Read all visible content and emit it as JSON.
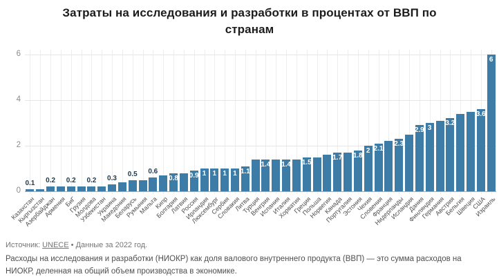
{
  "title": {
    "line1": "Затраты на исследования и разработки в процентах от ВВП по",
    "line2": "странам"
  },
  "chart_data": {
    "type": "bar",
    "title": "Затраты на исследования и разработки в процентах от ВВП по странам",
    "xlabel": "",
    "ylabel": "",
    "ylim": [
      0,
      6.2
    ],
    "yticks": [
      0,
      2,
      4,
      6
    ],
    "grid": true,
    "legend": false,
    "bar_color": "#3d7ca6",
    "label_color_dark": "#1e384d",
    "label_color_light": "#ffffff",
    "categories": [
      "Казахстан",
      "Кыргызстан",
      "Азербайджан",
      "Армения",
      "БиГ",
      "Грузия",
      "Молдова",
      "Узбекистан",
      "Украина",
      "Македония",
      "Беларусь",
      "Румыния",
      "Мальта",
      "Кипр",
      "Болгария",
      "Латвия",
      "Россия",
      "Ирландия",
      "Люксембург",
      "Сербия",
      "Словакия",
      "Литва",
      "Турция",
      "Венгрия",
      "Испания",
      "Италия",
      "Хорватия",
      "Греция",
      "Польша",
      "Норвегия",
      "Канада",
      "Португалия",
      "Эстония",
      "Чехия",
      "Словения",
      "Франция",
      "Нидерланды",
      "Исландия",
      "Дания",
      "Финляндия",
      "Германия",
      "Австрия",
      "Бельгия",
      "Швеция",
      "США",
      "Израиль"
    ],
    "values": [
      0.1,
      0.1,
      0.2,
      0.2,
      0.2,
      0.2,
      0.2,
      0.2,
      0.3,
      0.4,
      0.5,
      0.5,
      0.6,
      0.7,
      0.8,
      0.8,
      0.9,
      1,
      1,
      1,
      1,
      1.1,
      1.4,
      1.4,
      1.4,
      1.4,
      1.4,
      1.5,
      1.5,
      1.6,
      1.7,
      1.7,
      1.8,
      2,
      2.1,
      2.2,
      2.3,
      2.5,
      2.9,
      3,
      3.1,
      3.2,
      3.4,
      3.5,
      3.6,
      6
    ],
    "labeled_indices": [
      0,
      2,
      4,
      6,
      8,
      10,
      12,
      14,
      16,
      17,
      18,
      19,
      20,
      21,
      23,
      25,
      27,
      30,
      32,
      33,
      34,
      36,
      38,
      39,
      41,
      44,
      45
    ]
  },
  "footer": {
    "source_label": "Источник:",
    "source_link": "UNECE",
    "source_suffix": "• Данные за 2022 год.",
    "notes": "Расходы на исследования и разработки (НИОКР) как доля валового внутреннего продукта (ВВП) — это сумма расходов на НИОКР, деленная на общий объем производства в экономике."
  }
}
